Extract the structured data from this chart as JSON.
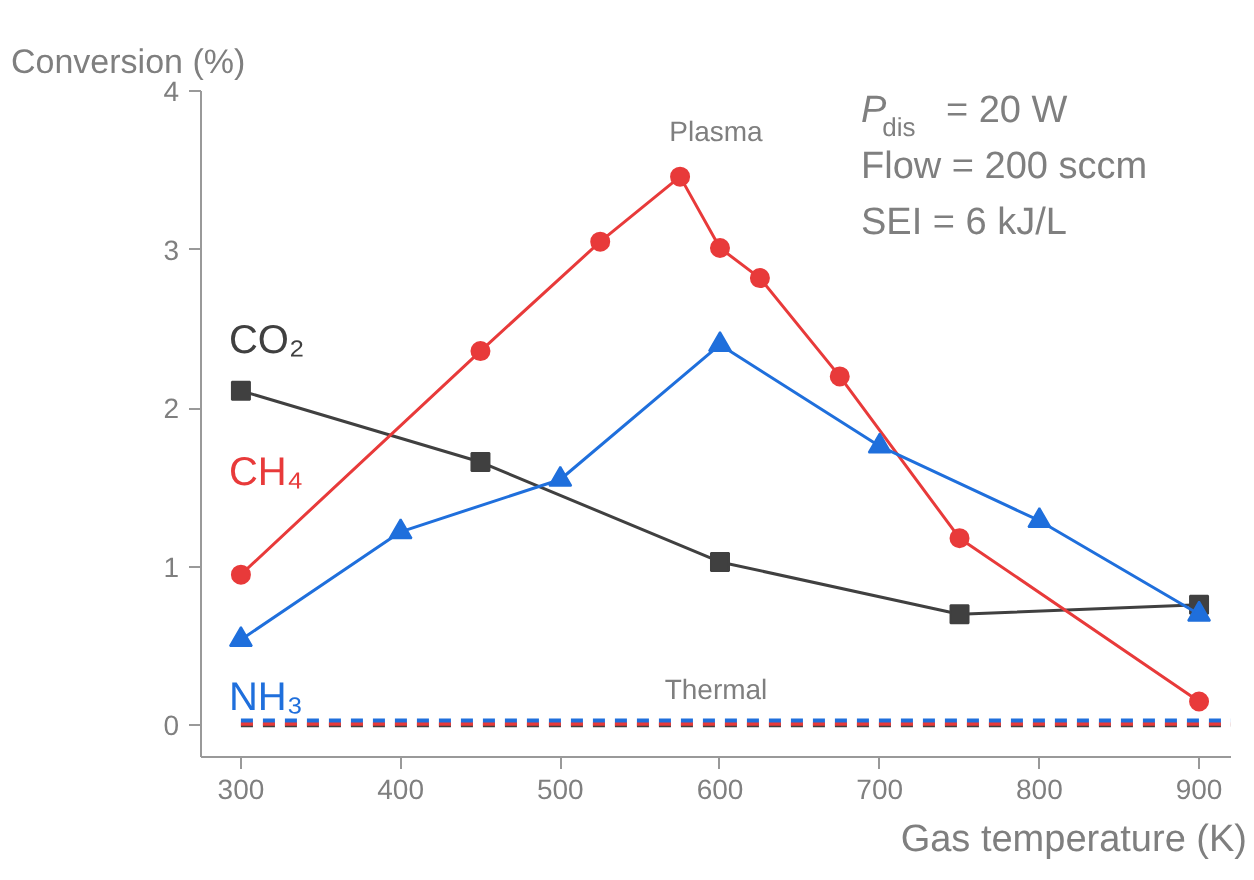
{
  "chart_data": {
    "type": "line",
    "xlabel": "Gas temperature (K)",
    "ylabel": "Conversion (%)",
    "xlim": [
      275,
      920
    ],
    "ylim": [
      -0.2,
      4
    ],
    "xticks": [
      300,
      400,
      500,
      600,
      700,
      800,
      900
    ],
    "yticks": [
      0,
      1,
      2,
      3,
      4
    ],
    "grid": false,
    "series": [
      {
        "name": "CO₂",
        "color": "#404040",
        "marker": "square",
        "line_style": "solid",
        "x": [
          300,
          450,
          600,
          750,
          900
        ],
        "values": [
          2.11,
          1.66,
          1.03,
          0.7,
          0.76
        ]
      },
      {
        "name": "CH₄",
        "color": "#e83a3a",
        "marker": "circle",
        "line_style": "solid",
        "x": [
          300,
          450,
          525,
          575,
          600,
          625,
          675,
          750,
          900
        ],
        "values": [
          0.95,
          2.36,
          3.05,
          3.46,
          3.01,
          2.82,
          2.2,
          1.18,
          0.15
        ]
      },
      {
        "name": "NH₃",
        "color": "#1f6fdc",
        "marker": "triangle",
        "line_style": "solid",
        "x": [
          300,
          400,
          500,
          600,
          700,
          800,
          900
        ],
        "values": [
          0.54,
          1.22,
          1.55,
          2.4,
          1.76,
          1.29,
          0.7
        ]
      },
      {
        "color": "#404040",
        "marker": "none",
        "line_style": "dashed",
        "x": [
          300,
          920
        ],
        "values": [
          0,
          0
        ]
      },
      {
        "color": "#e83a3a",
        "marker": "none",
        "line_style": "dashed",
        "x": [
          300,
          920
        ],
        "values": [
          0.01,
          0.01
        ]
      },
      {
        "color": "#1f6fdc",
        "marker": "none",
        "line_style": "dashed",
        "x": [
          300,
          920
        ],
        "values": [
          0.03,
          0.03
        ]
      }
    ],
    "annotations": [
      "Plasma",
      "Thermal",
      "P$_{dis}$ = 20 W",
      "Flow = 200 sccm",
      "SEI = 6 kJ/L"
    ]
  }
}
